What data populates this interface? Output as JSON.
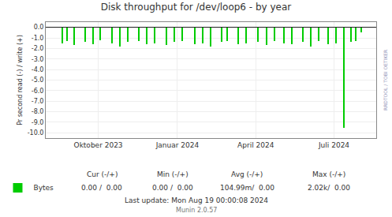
{
  "chart_data": {
    "type": "bar",
    "title": "Disk throughput for /dev/loop6 - by year",
    "ylabel": "Pr second read (-) / write (+)",
    "xlim": [
      1690848000,
      1724025600
    ],
    "xticks": [
      {
        "value": 1696118400,
        "label": "Oktober 2023"
      },
      {
        "value": 1704067200,
        "label": "Januar 2024"
      },
      {
        "value": 1711929600,
        "label": "April 2024"
      },
      {
        "value": 1719792000,
        "label": "Juli 2024"
      }
    ],
    "ylim": [
      -10.5,
      0.5
    ],
    "yticks": [
      {
        "value": 0.0,
        "label": "0.0"
      },
      {
        "value": -1.0,
        "label": "-1.0"
      },
      {
        "value": -2.0,
        "label": "-2.0"
      },
      {
        "value": -3.0,
        "label": "-3.0"
      },
      {
        "value": -4.0,
        "label": "-4.0"
      },
      {
        "value": -5.0,
        "label": "-5.0"
      },
      {
        "value": -6.0,
        "label": "-6.0"
      },
      {
        "value": -7.0,
        "label": "-7.0"
      },
      {
        "value": -8.0,
        "label": "-8.0"
      },
      {
        "value": -9.0,
        "label": "-9.0"
      },
      {
        "value": -10.0,
        "label": "-10.0"
      }
    ],
    "grid": true,
    "legend": "lower left",
    "series": [
      {
        "name": "Bytes",
        "color": "#00cc00",
        "x": [
          1692500000,
          1693000000,
          1693700000,
          1694800000,
          1695600000,
          1696300000,
          1697500000,
          1698300000,
          1699100000,
          1700200000,
          1701000000,
          1701800000,
          1703000000,
          1703800000,
          1704600000,
          1705800000,
          1706600000,
          1707400000,
          1708500000,
          1709100000,
          1710200000,
          1711000000,
          1712200000,
          1713000000,
          1713800000,
          1714800000,
          1715600000,
          1716700000,
          1717500000,
          1718300000,
          1719200000,
          1720000000,
          1720800000,
          1721500000,
          1722000000,
          1722500000
        ],
        "values": [
          -1.5,
          -1.3,
          -1.7,
          -1.4,
          -1.6,
          -1.2,
          -1.5,
          -1.8,
          -1.4,
          -1.3,
          -1.6,
          -1.5,
          -1.7,
          -1.4,
          -1.3,
          -1.6,
          -1.5,
          -1.8,
          -1.4,
          -1.3,
          -1.6,
          -1.5,
          -1.4,
          -1.7,
          -1.3,
          -1.5,
          -1.6,
          -1.4,
          -1.8,
          -1.3,
          -1.6,
          -1.5,
          -9.5,
          -1.4,
          -1.3,
          -0.5
        ]
      }
    ],
    "annotations": [
      "RRDTOOL / TOBI OETIKER",
      "Cur (-/+)",
      "Min (-/+)",
      "Avg (-/+)",
      "Max (-/+)",
      "0.00 /  0.00",
      "0.00 /  0.00",
      "104.99m/  0.00",
      "2.02k/  0.00",
      "Last update: Mon Aug 19 00:00:08 2024",
      "Munin 2.0.57"
    ]
  }
}
